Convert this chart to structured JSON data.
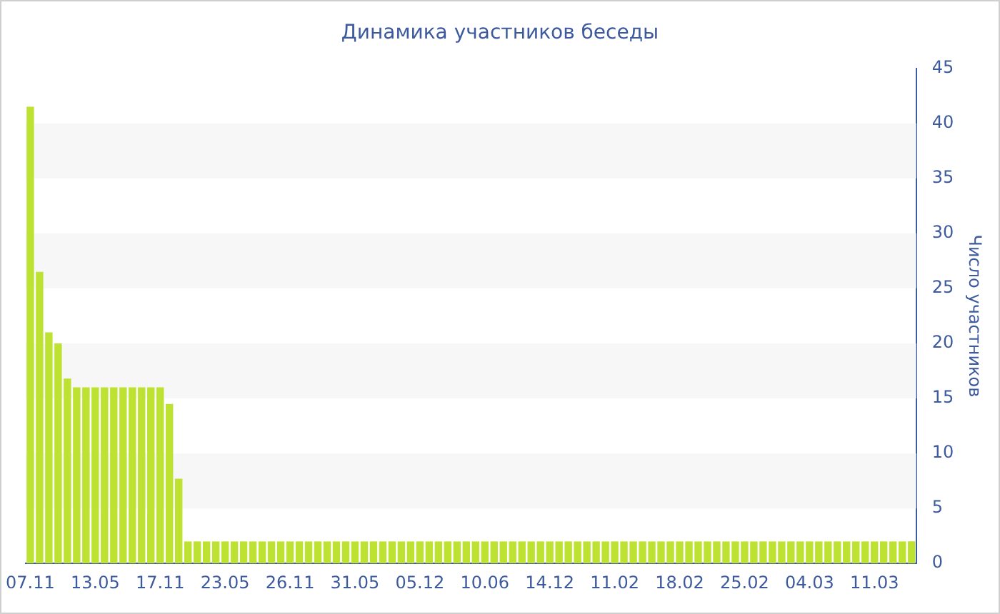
{
  "chart_data": {
    "type": "bar",
    "title": "Динамика участников беседы",
    "ylabel": "Число участников",
    "categories": [
      "07.11",
      null,
      null,
      null,
      null,
      null,
      null,
      "13.05",
      null,
      null,
      null,
      null,
      null,
      null,
      "17.11",
      null,
      null,
      null,
      null,
      null,
      null,
      "23.05",
      null,
      null,
      null,
      null,
      null,
      null,
      "26.11",
      null,
      null,
      null,
      null,
      null,
      null,
      "31.05",
      null,
      null,
      null,
      null,
      null,
      null,
      "05.12",
      null,
      null,
      null,
      null,
      null,
      null,
      "10.06",
      null,
      null,
      null,
      null,
      null,
      null,
      "14.12",
      null,
      null,
      null,
      null,
      null,
      null,
      "11.02",
      null,
      null,
      null,
      null,
      null,
      null,
      "18.02",
      null,
      null,
      null,
      null,
      null,
      null,
      "25.02",
      null,
      null,
      null,
      null,
      null,
      null,
      "04.03",
      null,
      null,
      null,
      null,
      null,
      null,
      "11.03",
      null,
      null,
      null,
      null
    ],
    "values": [
      41.5,
      26.5,
      21,
      20,
      16.8,
      16,
      16,
      16,
      16,
      16,
      16,
      16,
      16,
      16,
      16,
      14.5,
      7.7,
      2,
      2,
      2,
      2,
      2,
      2,
      2,
      2,
      2,
      2,
      2,
      2,
      2,
      2,
      2,
      2,
      2,
      2,
      2,
      2,
      2,
      2,
      2,
      2,
      2,
      2,
      2,
      2,
      2,
      2,
      2,
      2,
      2,
      2,
      2,
      2,
      2,
      2,
      2,
      2,
      2,
      2,
      2,
      2,
      2,
      2,
      2,
      2,
      2,
      2,
      2,
      2,
      2,
      2,
      2,
      2,
      2,
      2,
      2,
      2,
      2,
      2,
      2,
      2,
      2,
      2,
      2,
      2,
      2,
      2,
      2,
      2,
      2,
      2,
      2,
      2,
      2,
      2,
      2
    ],
    "color": "#bde232",
    "ylim": [
      0,
      45
    ],
    "yticks": [
      0,
      5,
      10,
      15,
      20,
      25,
      30,
      35,
      40,
      45
    ],
    "bands": [
      {
        "axis": "y",
        "from": 5,
        "to": 10,
        "color": "#f7f7f7"
      },
      {
        "axis": "y",
        "from": 15,
        "to": 20,
        "color": "#f7f7f7"
      },
      {
        "axis": "y",
        "from": 25,
        "to": 30,
        "color": "#f7f7f7"
      },
      {
        "axis": "y",
        "from": 35,
        "to": 40,
        "color": "#f7f7f7"
      }
    ]
  }
}
